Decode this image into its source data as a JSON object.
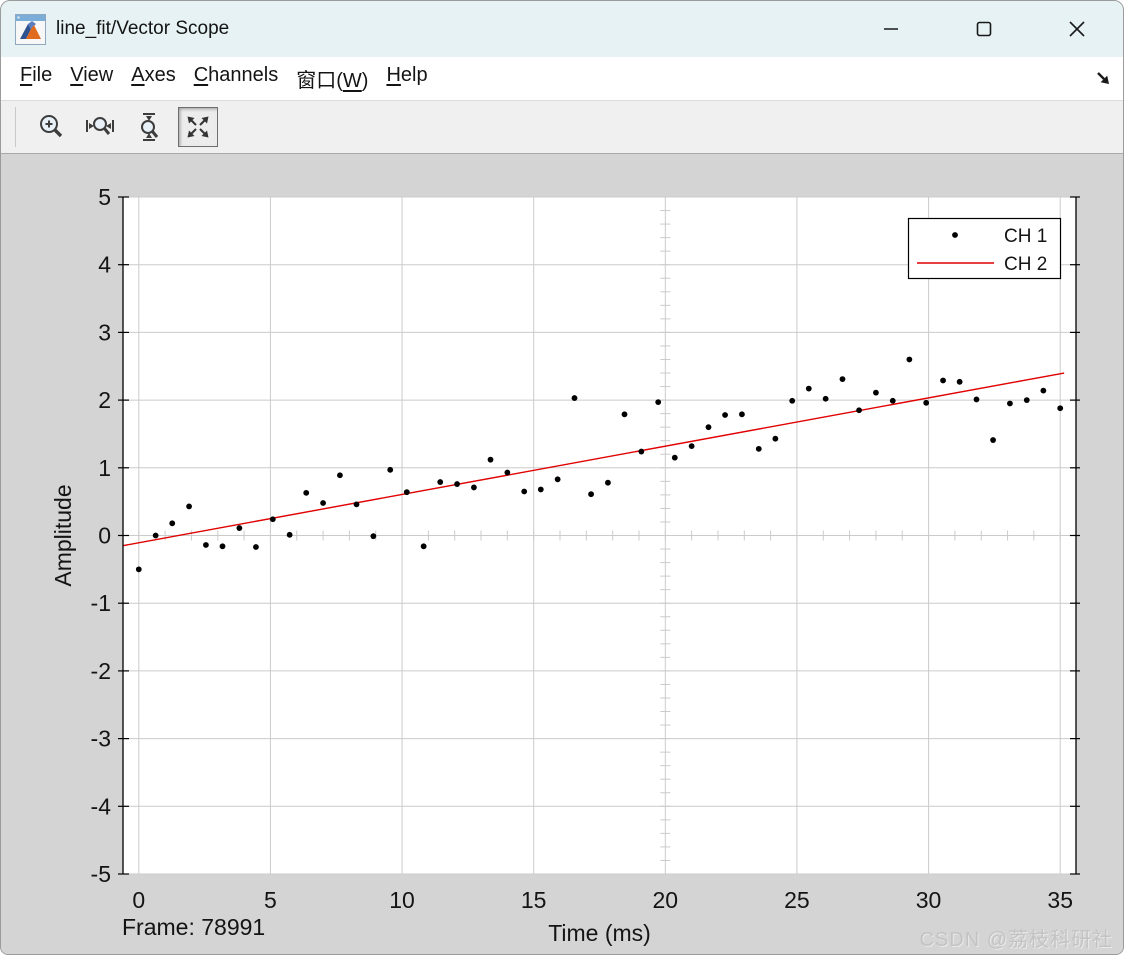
{
  "window": {
    "title": "line_fit/Vector Scope",
    "icon": "matlab-figure-icon",
    "controls": [
      {
        "name": "minimize",
        "icon": "minimize-icon"
      },
      {
        "name": "maximize",
        "icon": "maximize-icon"
      },
      {
        "name": "close",
        "icon": "close-icon"
      }
    ]
  },
  "menu": {
    "items": [
      {
        "label": "File",
        "mnemonic": "F"
      },
      {
        "label": "View",
        "mnemonic": "V"
      },
      {
        "label": "Axes",
        "mnemonic": "A"
      },
      {
        "label": "Channels",
        "mnemonic": "C"
      },
      {
        "label": "窗口(W)",
        "mnemonic": "W"
      },
      {
        "label": "Help",
        "mnemonic": "H"
      }
    ],
    "dock_icon": "dock-arrow-icon"
  },
  "toolbar": {
    "buttons": [
      {
        "name": "zoom-in",
        "icon": "zoom-in-icon",
        "pressed": false
      },
      {
        "name": "zoom-x-axis",
        "icon": "zoom-x-axis-icon",
        "pressed": false
      },
      {
        "name": "zoom-y-axis",
        "icon": "zoom-y-axis-icon",
        "pressed": false
      },
      {
        "name": "autoscale",
        "icon": "autoscale-icon",
        "pressed": true
      }
    ]
  },
  "status": {
    "frame_label": "Frame: 78991"
  },
  "watermark": {
    "text": "CSDN @荔枝科研社"
  },
  "colors": {
    "titlebar_bg": "#e6f2f3",
    "menubar_bg": "#ffffff",
    "toolbar_bg": "#f0f0f0",
    "workspace_bg": "#d4d4d4",
    "plot_bg": "#ffffff",
    "grid": "#cbcbcb",
    "axis": "#000000",
    "ch1": "#000000",
    "ch2": "#e00000",
    "watermark": "#c3c3c3"
  },
  "chart_data": {
    "type": "scatter",
    "title": "",
    "xlabel": "Time (ms)",
    "ylabel": "Amplitude",
    "xlim": [
      -0.6,
      35.6
    ],
    "ylim": [
      -5,
      5
    ],
    "xticks": [
      0,
      5,
      10,
      15,
      20,
      25,
      30,
      35
    ],
    "yticks": [
      -5,
      -4,
      -3,
      -2,
      -1,
      0,
      1,
      2,
      3,
      4,
      5
    ],
    "grid": true,
    "grid_color": "#cbcbcb",
    "crosshair": {
      "vline_x": 20,
      "hline_y": 0,
      "minor_dx": 1,
      "minor_dy": 0.2
    },
    "legend": {
      "position": "top-right",
      "entries": [
        {
          "label": "CH 1",
          "marker": "dot",
          "color": "#000000"
        },
        {
          "label": "CH 2",
          "marker": "line",
          "color": "#e00000"
        }
      ]
    },
    "series": [
      {
        "name": "CH 1",
        "type": "scatter",
        "color": "#000000",
        "x": [
          0,
          0.64,
          1.27,
          1.91,
          2.55,
          3.18,
          3.82,
          4.45,
          5.09,
          5.73,
          6.36,
          7.0,
          7.64,
          8.27,
          8.91,
          9.55,
          10.18,
          10.82,
          11.45,
          12.09,
          12.73,
          13.36,
          14.0,
          14.64,
          15.27,
          15.91,
          16.55,
          17.18,
          17.82,
          18.45,
          19.09,
          19.73,
          20.36,
          21.0,
          21.64,
          22.27,
          22.91,
          23.55,
          24.18,
          24.82,
          25.45,
          26.09,
          26.73,
          27.36,
          28.0,
          28.64,
          29.27,
          29.91,
          30.55,
          31.18,
          31.82,
          32.45,
          33.09,
          33.73,
          34.36,
          35.0
        ],
        "y": [
          -0.5,
          0.0,
          0.18,
          0.43,
          -0.14,
          -0.16,
          0.11,
          -0.17,
          0.24,
          0.01,
          0.63,
          0.48,
          0.89,
          0.46,
          -0.01,
          0.97,
          0.64,
          -0.16,
          0.79,
          0.76,
          0.71,
          1.12,
          0.93,
          0.65,
          0.68,
          0.83,
          2.03,
          0.61,
          0.78,
          1.79,
          1.24,
          1.97,
          1.15,
          1.32,
          1.6,
          1.78,
          1.79,
          1.28,
          1.43,
          1.99,
          2.17,
          2.02,
          2.31,
          1.85,
          2.11,
          1.99,
          2.6,
          1.96,
          2.29,
          2.27,
          2.01,
          1.41,
          1.95,
          2.0,
          2.14,
          1.88
        ]
      },
      {
        "name": "CH 2",
        "type": "line",
        "color": "#e00000",
        "x": [
          -0.6,
          35.15
        ],
        "y": [
          -0.15,
          2.4
        ]
      }
    ]
  }
}
